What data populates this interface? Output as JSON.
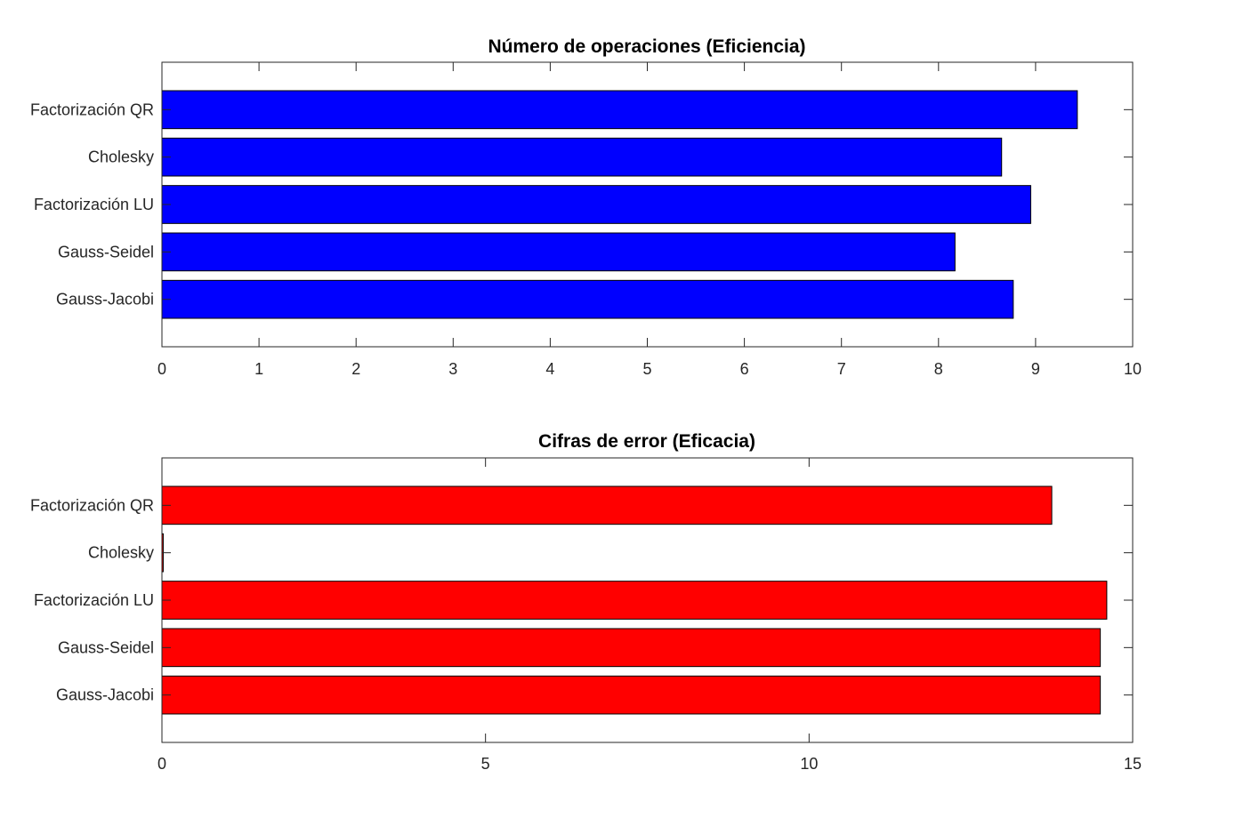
{
  "chart_data": [
    {
      "type": "bar",
      "orientation": "horizontal",
      "title": "Número de operaciones (Eficiencia)",
      "categories": [
        "Gauss-Jacobi",
        "Gauss-Seidel",
        "Factorización LU",
        "Cholesky",
        "Factorización QR"
      ],
      "values": [
        8.77,
        8.17,
        8.95,
        8.65,
        9.43
      ],
      "xlim": [
        0,
        10
      ],
      "xticks": [
        "0",
        "1",
        "2",
        "3",
        "4",
        "5",
        "6",
        "7",
        "8",
        "9",
        "10"
      ],
      "color": "#0000ff",
      "xlabel": "",
      "ylabel": "",
      "grid": false
    },
    {
      "type": "bar",
      "orientation": "horizontal",
      "title": "Cifras de error (Eficacia)",
      "categories": [
        "Gauss-Jacobi",
        "Gauss-Seidel",
        "Factorización LU",
        "Cholesky",
        "Factorización QR"
      ],
      "values": [
        14.5,
        14.5,
        14.6,
        0.02,
        13.75
      ],
      "xlim": [
        0,
        15
      ],
      "xticks": [
        "0",
        "5",
        "10",
        "15"
      ],
      "color": "#ff0000",
      "xlabel": "",
      "ylabel": "",
      "grid": false
    }
  ]
}
